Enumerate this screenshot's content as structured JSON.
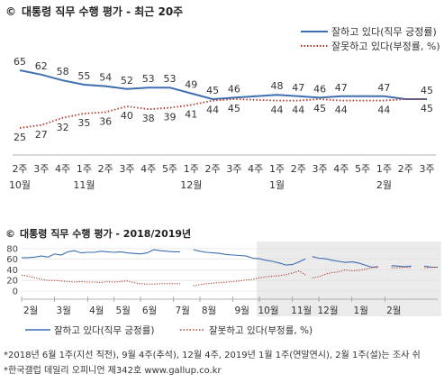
{
  "chart_data": [
    {
      "type": "line",
      "title_mark": "©",
      "title": "대통령 직무 수행 평가 - 최근 20주",
      "x": [
        {
          "week": "2주",
          "month": "10월"
        },
        {
          "week": "3주",
          "month": ""
        },
        {
          "week": "4주",
          "month": ""
        },
        {
          "week": "1주",
          "month": "11월"
        },
        {
          "week": "2주",
          "month": ""
        },
        {
          "week": "3주",
          "month": ""
        },
        {
          "week": "4주",
          "month": ""
        },
        {
          "week": "5주",
          "month": ""
        },
        {
          "week": "1주",
          "month": "12월"
        },
        {
          "week": "2주",
          "month": ""
        },
        {
          "week": "3주",
          "month": ""
        },
        {
          "week": "4주",
          "month": ""
        },
        {
          "week": "1주",
          "month": "1월"
        },
        {
          "week": "2주",
          "month": ""
        },
        {
          "week": "3주",
          "month": ""
        },
        {
          "week": "4주",
          "month": ""
        },
        {
          "week": "5주",
          "month": ""
        },
        {
          "week": "1주",
          "month": "2월"
        },
        {
          "week": "2주",
          "month": ""
        },
        {
          "week": "3주",
          "month": ""
        }
      ],
      "series": [
        {
          "name": "잘하고 있다(직무 긍정률)",
          "color": "#3f6fb0",
          "style": "solid",
          "values": [
            65,
            62,
            58,
            55,
            54,
            52,
            53,
            53,
            49,
            45,
            46,
            null,
            48,
            47,
            46,
            47,
            null,
            47,
            45,
            45
          ],
          "labels": [
            "65",
            "62",
            "58",
            "55",
            "54",
            "52",
            "53",
            "53",
            "49",
            "45",
            "46",
            "",
            "48",
            "47",
            "46",
            "47",
            "",
            "47",
            "",
            "45"
          ]
        },
        {
          "name": "잘못하고 있다(부정률, %)",
          "color": "#b03a2e",
          "style": "dotted",
          "values": [
            25,
            27,
            32,
            35,
            36,
            40,
            38,
            39,
            41,
            44,
            45,
            null,
            44,
            44,
            45,
            44,
            null,
            44,
            45,
            45
          ],
          "labels": [
            "25",
            "27",
            "32",
            "35",
            "36",
            "40",
            "38",
            "39",
            "41",
            "44",
            "45",
            "",
            "44",
            "44",
            "45",
            "44",
            "",
            "44",
            "",
            "45"
          ]
        }
      ],
      "ylim": [
        20,
        70
      ],
      "legend_position": "top-right"
    },
    {
      "type": "line",
      "title_mark": "©",
      "title": "대통령 직무 수행 평가 - 2018/2019년",
      "y_ticks": [
        0,
        20,
        40,
        60,
        80
      ],
      "ylim": [
        0,
        90
      ],
      "month_labels": [
        "2월",
        "3월",
        "4월",
        "5월",
        "6월",
        "7월",
        "8월",
        "9월",
        "10월",
        "11월",
        "12월",
        "1월",
        "2월"
      ],
      "highlight_from_month": "10월",
      "series": [
        {
          "name": "잘하고 있다(직무 긍정률)",
          "color": "#3f6fb0",
          "style": "solid",
          "segments": [
            [
              [
                0,
                63
              ],
              [
                1,
                63
              ],
              [
                2,
                64
              ],
              [
                3,
                66
              ],
              [
                4,
                64
              ],
              [
                5,
                70
              ],
              [
                6,
                68
              ],
              [
                7,
                74
              ],
              [
                8,
                76
              ],
              [
                9,
                72
              ],
              [
                10,
                73
              ],
              [
                11,
                73
              ],
              [
                12,
                75
              ],
              [
                13,
                74
              ],
              [
                14,
                73
              ],
              [
                15,
                74
              ],
              [
                16,
                72
              ],
              [
                17,
                71
              ],
              [
                18,
                70
              ],
              [
                19,
                72
              ],
              [
                20,
                78
              ],
              [
                21,
                76
              ],
              [
                22,
                75
              ],
              [
                23,
                74
              ],
              [
                24,
                74
              ]
            ],
            [
              [
                26,
                78
              ],
              [
                27,
                75
              ],
              [
                28,
                73
              ],
              [
                29,
                72
              ],
              [
                30,
                71
              ],
              [
                31,
                69
              ],
              [
                32,
                68
              ],
              [
                33,
                67
              ],
              [
                34,
                66
              ],
              [
                35,
                62
              ],
              [
                36,
                61
              ],
              [
                37,
                58
              ],
              [
                38,
                56
              ],
              [
                39,
                53
              ],
              [
                40,
                49
              ],
              [
                41,
                50
              ],
              [
                42,
                55
              ],
              [
                43,
                61
              ]
            ],
            [
              [
                44,
                65
              ],
              [
                45,
                62
              ],
              [
                46,
                61
              ],
              [
                47,
                58
              ],
              [
                48,
                56
              ],
              [
                49,
                54
              ],
              [
                50,
                55
              ],
              [
                51,
                53
              ],
              [
                52,
                49
              ],
              [
                53,
                45
              ],
              [
                54,
                46
              ]
            ],
            [
              [
                56,
                48
              ],
              [
                57,
                47
              ],
              [
                58,
                46
              ],
              [
                59,
                47
              ]
            ],
            [
              [
                61,
                47
              ],
              [
                62,
                45
              ],
              [
                63,
                45
              ]
            ]
          ]
        },
        {
          "name": "잘못하고 있다(부정률, %)",
          "color": "#b03a2e",
          "style": "dotted",
          "segments": [
            [
              [
                0,
                30
              ],
              [
                1,
                28
              ],
              [
                2,
                25
              ],
              [
                3,
                22
              ],
              [
                4,
                20
              ],
              [
                5,
                20
              ],
              [
                6,
                19
              ],
              [
                7,
                18
              ],
              [
                8,
                17
              ],
              [
                9,
                18
              ],
              [
                10,
                17
              ],
              [
                11,
                17
              ],
              [
                12,
                16
              ],
              [
                13,
                18
              ],
              [
                14,
                17
              ],
              [
                15,
                18
              ],
              [
                16,
                19
              ],
              [
                17,
                16
              ],
              [
                18,
                14
              ],
              [
                19,
                13
              ],
              [
                20,
                13
              ],
              [
                21,
                14
              ],
              [
                22,
                14
              ],
              [
                23,
                14
              ],
              [
                24,
                14
              ]
            ],
            [
              [
                26,
                10
              ],
              [
                27,
                12
              ],
              [
                28,
                14
              ],
              [
                29,
                15
              ],
              [
                30,
                16
              ],
              [
                31,
                17
              ],
              [
                32,
                18
              ],
              [
                33,
                19
              ],
              [
                34,
                21
              ],
              [
                35,
                22
              ],
              [
                36,
                25
              ],
              [
                37,
                27
              ],
              [
                38,
                28
              ],
              [
                39,
                29
              ],
              [
                40,
                31
              ],
              [
                41,
                34
              ],
              [
                42,
                38
              ],
              [
                43,
                30
              ]
            ],
            [
              [
                44,
                25
              ],
              [
                45,
                27
              ],
              [
                46,
                32
              ],
              [
                47,
                35
              ],
              [
                48,
                36
              ],
              [
                49,
                40
              ],
              [
                50,
                38
              ],
              [
                51,
                39
              ],
              [
                52,
                41
              ],
              [
                53,
                44
              ],
              [
                54,
                45
              ]
            ],
            [
              [
                56,
                44
              ],
              [
                57,
                44
              ],
              [
                58,
                45
              ],
              [
                59,
                44
              ]
            ],
            [
              [
                61,
                44
              ],
              [
                62,
                45
              ],
              [
                63,
                45
              ]
            ]
          ]
        }
      ],
      "x_count": 64,
      "month_start_index": [
        0,
        5,
        10,
        14,
        18,
        23,
        27,
        32,
        36,
        41,
        45,
        50,
        55
      ],
      "legend": [
        "잘하고 있다(직무 긍정률)",
        "잘못하고 있다(부정률, %)"
      ]
    }
  ],
  "footnotes": [
    "*2018년 6월 1주(지선 직전), 9월 4주(추석), 12월 4주, 2019년 1월 1주(연말연시), 2월 1주(설)는 조사 쉬",
    "*한국갤럽 데일리 오피니언 제342호 www.gallup.co.kr"
  ]
}
